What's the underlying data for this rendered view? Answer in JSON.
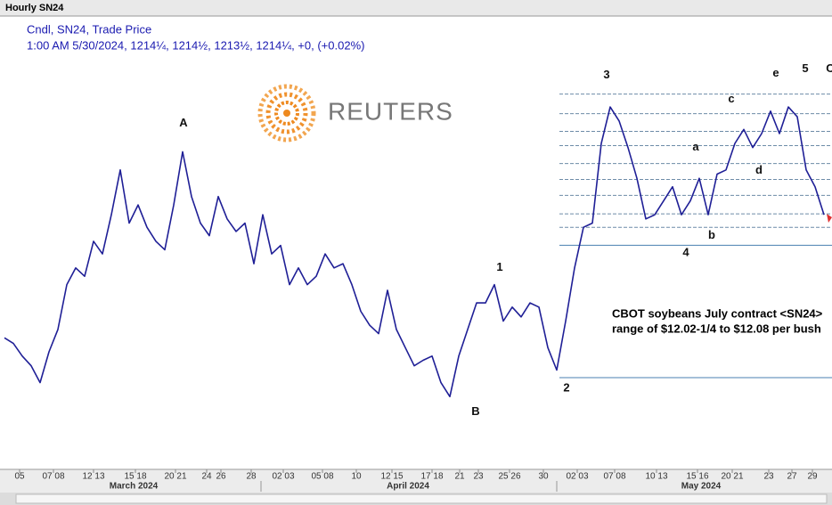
{
  "chart_data": {
    "type": "line",
    "title": "Hourly SN24",
    "legend_lines": [
      "Cndl, SN24, Trade Price",
      "1:00 AM 5/30/2024, 1214¼, 1214½, 1213½, 1214¼, +0, (+0.02%)"
    ],
    "watermark": "REUTERS",
    "series": [
      {
        "color": "#1f1f96",
        "values": [
          1170,
          1168,
          1163.5,
          1160,
          1154,
          1165,
          1173,
          1189,
          1195,
          1192,
          1204.5,
          1200,
          1214,
          1230,
          1211,
          1217.5,
          1209.5,
          1204.5,
          1201.5,
          1217.5,
          1236.5,
          1220.5,
          1211,
          1206.5,
          1220.5,
          1212.5,
          1208,
          1211,
          1196.5,
          1214,
          1200,
          1203,
          1189,
          1195,
          1189,
          1192,
          1200,
          1195,
          1196.5,
          1189,
          1179.5,
          1174.5,
          1171.5,
          1187,
          1173,
          1166.5,
          1160,
          1162,
          1163.5,
          1154,
          1149,
          1163.5,
          1173,
          1182.5,
          1182.5,
          1189,
          1176,
          1181,
          1177.5,
          1182.5,
          1181,
          1166.5,
          1158.5,
          1176,
          1195,
          1209.5,
          1211,
          1239.5,
          1252.5,
          1247.5,
          1238,
          1227,
          1212.5,
          1214,
          1219,
          1224,
          1214,
          1219,
          1227,
          1214,
          1228.5,
          1230,
          1239.5,
          1244.5,
          1238,
          1243,
          1251,
          1243,
          1252.5,
          1249,
          1230,
          1224,
          1214
        ]
      }
    ],
    "xlim": [
      0,
      93
    ],
    "ylim": [
      1123,
      1285
    ],
    "xticks": [
      {
        "value": 1.7,
        "label": "05"
      },
      {
        "value": 5.5,
        "label": "07 08"
      },
      {
        "value": 10,
        "label": "12 13"
      },
      {
        "value": 14.7,
        "label": "15 18"
      },
      {
        "value": 19.2,
        "label": "20 21"
      },
      {
        "value": 22.7,
        "label": "24"
      },
      {
        "value": 24.3,
        "label": "26"
      },
      {
        "value": 27.7,
        "label": "28"
      },
      {
        "value": 31.3,
        "label": "02 03"
      },
      {
        "value": 35.7,
        "label": "05 08"
      },
      {
        "value": 39.5,
        "label": "10"
      },
      {
        "value": 43.5,
        "label": "12 15"
      },
      {
        "value": 48,
        "label": "17 18"
      },
      {
        "value": 51.1,
        "label": "21"
      },
      {
        "value": 53.2,
        "label": "23"
      },
      {
        "value": 56.7,
        "label": "25 26"
      },
      {
        "value": 60.5,
        "label": "30"
      },
      {
        "value": 64.3,
        "label": "02 03"
      },
      {
        "value": 68.5,
        "label": "07 08"
      },
      {
        "value": 73.2,
        "label": "10 13"
      },
      {
        "value": 77.8,
        "label": "15 16"
      },
      {
        "value": 81.7,
        "label": "20 21"
      },
      {
        "value": 85.8,
        "label": "23"
      },
      {
        "value": 88.4,
        "label": "27"
      },
      {
        "value": 90.7,
        "label": "29"
      }
    ],
    "months": [
      {
        "value": 14.5,
        "label": "March 2024"
      },
      {
        "value": 45.3,
        "label": "April 2024"
      },
      {
        "value": 78.2,
        "label": "May 2024"
      }
    ],
    "levels": [
      {
        "value": 1257.1,
        "style": "dashed"
      },
      {
        "value": 1250.1,
        "style": "dashed"
      },
      {
        "value": 1243.8,
        "style": "dashed"
      },
      {
        "value": 1238.7,
        "style": "dashed"
      },
      {
        "value": 1232.3,
        "style": "dashed"
      },
      {
        "value": 1226.6,
        "style": "dashed"
      },
      {
        "value": 1220.9,
        "style": "dashed"
      },
      {
        "value": 1214.3,
        "style": "dashed"
      },
      {
        "value": 1209.5,
        "style": "dashed"
      },
      {
        "value": 1203.1,
        "style": "solid"
      },
      {
        "value": 1155.8,
        "style": "solid"
      }
    ],
    "waves": [
      {
        "text": "A",
        "x": 20.1,
        "y": 1246.6
      },
      {
        "text": "B",
        "x": 52.9,
        "y": 1143.5
      },
      {
        "text": "1",
        "x": 55.6,
        "y": 1195
      },
      {
        "text": "2",
        "x": 63.1,
        "y": 1152
      },
      {
        "text": "3",
        "x": 67.6,
        "y": 1263.8
      },
      {
        "text": "4",
        "x": 76.5,
        "y": 1200.3
      },
      {
        "text": "5",
        "x": 89.9,
        "y": 1266
      },
      {
        "text": "C",
        "x": 92.7,
        "y": 1266
      },
      {
        "text": "a",
        "x": 77.6,
        "y": 1238
      },
      {
        "text": "b",
        "x": 79.4,
        "y": 1206.6
      },
      {
        "text": "c",
        "x": 81.6,
        "y": 1255.2
      },
      {
        "text": "d",
        "x": 84.7,
        "y": 1229.8
      },
      {
        "text": "e",
        "x": 86.6,
        "y": 1264.4
      }
    ],
    "annotation": [
      "CBOT soybeans July contract <SN24>",
      "range of $12.02-1/4 to $12.08 per bush"
    ]
  }
}
